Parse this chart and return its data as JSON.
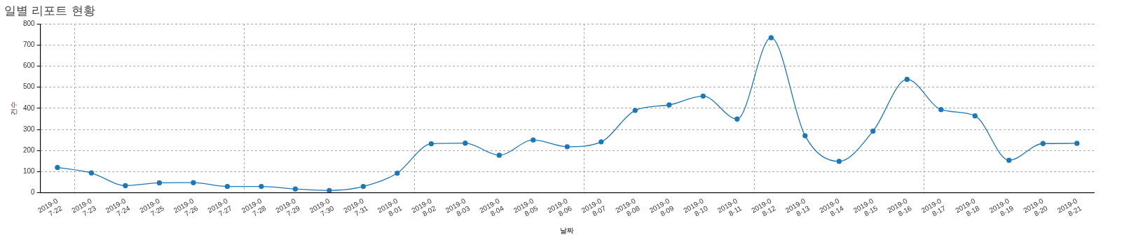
{
  "chart_data": {
    "type": "line",
    "title": "일별 리포트 현황",
    "xlabel": "날짜",
    "ylabel": "건수",
    "categories": [
      "2019-07-22",
      "2019-07-23",
      "2019-07-24",
      "2019-07-25",
      "2019-07-26",
      "2019-07-27",
      "2019-07-28",
      "2019-07-29",
      "2019-07-30",
      "2019-07-31",
      "2019-08-01",
      "2019-08-02",
      "2019-08-03",
      "2019-08-04",
      "2019-08-05",
      "2019-08-06",
      "2019-08-07",
      "2019-08-08",
      "2019-08-09",
      "2019-08-10",
      "2019-08-11",
      "2019-08-12",
      "2019-08-13",
      "2019-08-14",
      "2019-08-15",
      "2019-08-16",
      "2019-08-17",
      "2019-08-18",
      "2019-08-19",
      "2019-08-20",
      "2019-08-21"
    ],
    "series": [
      {
        "color": "#1f77b4",
        "values": [
          120,
          94,
          34,
          47,
          48,
          30,
          30,
          18,
          11,
          30,
          93,
          232,
          235,
          178,
          250,
          218,
          241,
          390,
          416,
          458,
          349,
          734,
          270,
          149,
          292,
          537,
          394,
          364,
          154,
          233,
          234
        ]
      }
    ],
    "ylim": [
      0,
      800
    ],
    "yticks": [
      0,
      100,
      200,
      300,
      400,
      500,
      600,
      700,
      800
    ],
    "grid": true,
    "marker": "circle",
    "legend": false
  }
}
